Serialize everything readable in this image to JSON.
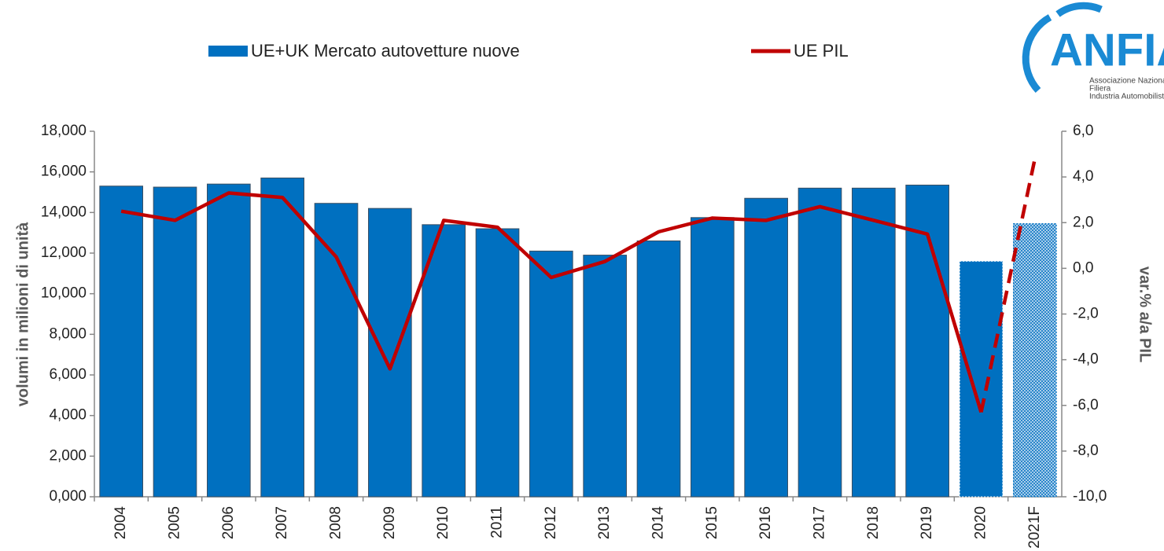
{
  "chart_data": {
    "type": "bar_line",
    "categories": [
      "2004",
      "2005",
      "2006",
      "2007",
      "2008",
      "2009",
      "2010",
      "2011",
      "2012",
      "2013",
      "2014",
      "2015",
      "2016",
      "2017",
      "2018",
      "2019",
      "2020",
      "2021F"
    ],
    "series": [
      {
        "name": "UE+UK Mercato autovetture nuove",
        "color": "#0070c0",
        "type": "bar",
        "values": [
          15.3,
          15.25,
          15.4,
          15.7,
          14.45,
          14.2,
          13.4,
          13.2,
          12.1,
          11.9,
          12.6,
          13.75,
          14.7,
          15.2,
          15.2,
          15.35,
          11.6,
          13.45
        ]
      },
      {
        "name": "UE PIL",
        "color": "#c00000",
        "type": "line",
        "axis": "y2",
        "values": [
          2.5,
          2.1,
          3.3,
          3.1,
          0.5,
          -4.4,
          2.1,
          1.8,
          -0.4,
          0.3,
          1.6,
          2.2,
          2.1,
          2.7,
          2.1,
          1.5,
          -6.3,
          4.8
        ]
      }
    ],
    "ylabel": "volumi in milioni di unità",
    "y2label": "var.% a/a PIL",
    "ylim": [
      0,
      18
    ],
    "yticks": [
      {
        "value": 0,
        "label": "0,000"
      },
      {
        "value": 2,
        "label": "2,000"
      },
      {
        "value": 4,
        "label": "4,000"
      },
      {
        "value": 6,
        "label": "6,000"
      },
      {
        "value": 8,
        "label": "8,000"
      },
      {
        "value": 10,
        "label": "10,000"
      },
      {
        "value": 12,
        "label": "12,000"
      },
      {
        "value": 14,
        "label": "14,000"
      },
      {
        "value": 16,
        "label": "16,000"
      },
      {
        "value": 18,
        "label": "18,000"
      }
    ],
    "y2lim": [
      -10,
      6
    ],
    "y2ticks": [
      {
        "value": -10,
        "label": "-10,0"
      },
      {
        "value": -8,
        "label": "-8,0"
      },
      {
        "value": -6,
        "label": "-6,0"
      },
      {
        "value": -4,
        "label": "-4,0"
      },
      {
        "value": -2,
        "label": "-2,0"
      },
      {
        "value": 0,
        "label": "0,0"
      },
      {
        "value": 2,
        "label": "2,0"
      },
      {
        "value": 4,
        "label": "4,0"
      },
      {
        "value": 6,
        "label": "6,0"
      }
    ],
    "legend": "top",
    "logo": {
      "name": "ANFIA",
      "lines": [
        "Associazione Nazionale",
        "Filiera",
        "Industria Automobilistica"
      ]
    }
  }
}
